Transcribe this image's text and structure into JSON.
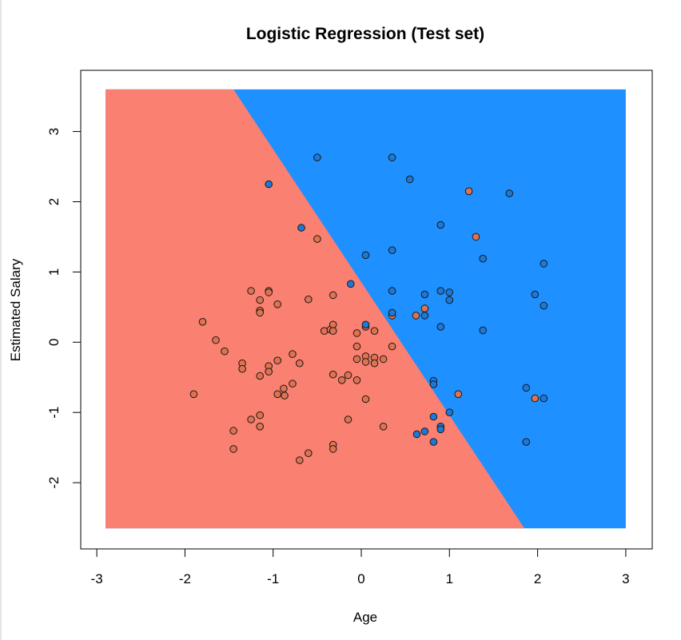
{
  "chart_data": {
    "type": "scatter",
    "title": "Logistic Regression (Test set)",
    "xlabel": "Age",
    "ylabel": "Estimated Salary",
    "xlim": [
      -2.9,
      3.0
    ],
    "ylim": [
      -2.65,
      3.6
    ],
    "xticks": [
      -3,
      -2,
      -1,
      0,
      1,
      2,
      3
    ],
    "yticks": [
      -2,
      -1,
      0,
      1,
      2,
      3
    ],
    "grid": false,
    "legend": "none",
    "region_colors": {
      "class_0": "#fa8072",
      "class_1": "#1e90ff"
    },
    "point_colors": {
      "class_0": "#e0734f",
      "class_1": "#1e78d8"
    },
    "decision_boundary": {
      "points": [
        [
          -1.45,
          3.6
        ],
        [
          1.85,
          -2.65
        ]
      ]
    },
    "series": [
      {
        "class": 0,
        "points": [
          [
            -1.9,
            -0.74
          ],
          [
            -1.8,
            0.29
          ],
          [
            -1.65,
            0.03
          ],
          [
            -1.55,
            -0.13
          ],
          [
            -1.45,
            -1.26
          ],
          [
            -1.45,
            -1.52
          ],
          [
            -1.35,
            -0.3
          ],
          [
            -1.35,
            -0.38
          ],
          [
            -1.25,
            0.73
          ],
          [
            -1.25,
            -1.1
          ],
          [
            -1.15,
            0.6
          ],
          [
            -1.15,
            0.45
          ],
          [
            -1.15,
            0.42
          ],
          [
            -1.15,
            -0.48
          ],
          [
            -1.15,
            -1.04
          ],
          [
            -1.15,
            -1.2
          ],
          [
            -1.05,
            0.73
          ],
          [
            -1.05,
            0.71
          ],
          [
            -1.05,
            -0.34
          ],
          [
            -1.05,
            -0.42
          ],
          [
            -0.95,
            0.54
          ],
          [
            -0.95,
            -0.26
          ],
          [
            -0.95,
            -0.74
          ],
          [
            -0.88,
            -0.66
          ],
          [
            -0.87,
            -0.76
          ],
          [
            -0.78,
            -0.17
          ],
          [
            -0.78,
            -0.59
          ],
          [
            -0.7,
            -0.3
          ],
          [
            -0.7,
            -1.68
          ],
          [
            -0.6,
            0.61
          ],
          [
            -0.6,
            -1.58
          ],
          [
            -0.5,
            1.47
          ],
          [
            -0.42,
            0.16
          ],
          [
            -0.35,
            0.18
          ],
          [
            -0.32,
            0.67
          ],
          [
            -0.32,
            0.25
          ],
          [
            -0.32,
            0.16
          ],
          [
            -0.32,
            -0.46
          ],
          [
            -0.32,
            -1.46
          ],
          [
            -0.32,
            -1.52
          ],
          [
            -0.22,
            -0.54
          ],
          [
            -0.15,
            -0.47
          ],
          [
            -0.15,
            -1.1
          ],
          [
            -0.05,
            0.13
          ],
          [
            -0.05,
            -0.06
          ],
          [
            -0.05,
            -0.24
          ],
          [
            -0.05,
            -0.54
          ],
          [
            0.05,
            0.22
          ],
          [
            0.05,
            -0.2
          ],
          [
            0.05,
            -0.28
          ],
          [
            0.05,
            -0.81
          ],
          [
            0.15,
            0.16
          ],
          [
            0.15,
            -0.22
          ],
          [
            0.15,
            -0.3
          ],
          [
            0.25,
            -0.24
          ],
          [
            0.25,
            -1.2
          ],
          [
            0.35,
            0.38
          ],
          [
            0.35,
            -0.06
          ],
          [
            0.62,
            0.38
          ],
          [
            0.72,
            0.48
          ],
          [
            1.1,
            -0.74
          ],
          [
            1.22,
            2.15
          ],
          [
            1.3,
            1.5
          ],
          [
            1.97,
            -0.8
          ]
        ]
      },
      {
        "class": 1,
        "points": [
          [
            -1.05,
            2.25
          ],
          [
            -0.68,
            1.63
          ],
          [
            -0.5,
            2.63
          ],
          [
            -0.12,
            0.83
          ],
          [
            0.05,
            1.24
          ],
          [
            0.05,
            0.25
          ],
          [
            0.35,
            2.63
          ],
          [
            0.35,
            1.31
          ],
          [
            0.35,
            0.73
          ],
          [
            0.35,
            0.42
          ],
          [
            0.55,
            2.32
          ],
          [
            0.63,
            -1.31
          ],
          [
            0.72,
            0.68
          ],
          [
            0.72,
            0.38
          ],
          [
            0.72,
            -1.27
          ],
          [
            0.82,
            -0.55
          ],
          [
            0.82,
            -0.6
          ],
          [
            0.82,
            -1.06
          ],
          [
            0.82,
            -1.42
          ],
          [
            0.9,
            1.67
          ],
          [
            0.9,
            0.73
          ],
          [
            0.9,
            0.22
          ],
          [
            0.9,
            -1.2
          ],
          [
            0.9,
            -1.24
          ],
          [
            1.0,
            0.71
          ],
          [
            1.0,
            0.6
          ],
          [
            1.0,
            -1.0
          ],
          [
            1.38,
            1.19
          ],
          [
            1.38,
            0.17
          ],
          [
            1.68,
            2.12
          ],
          [
            1.87,
            -0.65
          ],
          [
            1.87,
            -1.42
          ],
          [
            1.97,
            0.68
          ],
          [
            2.07,
            1.12
          ],
          [
            2.07,
            0.52
          ],
          [
            2.07,
            -0.8
          ]
        ]
      }
    ]
  }
}
